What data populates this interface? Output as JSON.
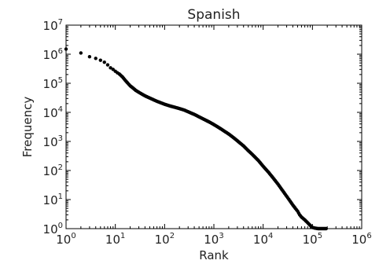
{
  "chart_data": {
    "type": "scatter",
    "title": "Spanish",
    "xlabel": "Rank",
    "ylabel": "Frequency",
    "xscale": "log",
    "yscale": "log",
    "xlim": [
      1,
      1000000
    ],
    "ylim": [
      1,
      10000000
    ],
    "grid": false,
    "x_ticks": [
      {
        "base": "10",
        "exp": "0",
        "value": 1
      },
      {
        "base": "10",
        "exp": "1",
        "value": 10
      },
      {
        "base": "10",
        "exp": "2",
        "value": 100
      },
      {
        "base": "10",
        "exp": "3",
        "value": 1000
      },
      {
        "base": "10",
        "exp": "4",
        "value": 10000
      },
      {
        "base": "10",
        "exp": "5",
        "value": 100000
      },
      {
        "base": "10",
        "exp": "6",
        "value": 1000000
      }
    ],
    "y_ticks": [
      {
        "base": "10",
        "exp": "0",
        "value": 1
      },
      {
        "base": "10",
        "exp": "1",
        "value": 10
      },
      {
        "base": "10",
        "exp": "2",
        "value": 100
      },
      {
        "base": "10",
        "exp": "3",
        "value": 1000
      },
      {
        "base": "10",
        "exp": "4",
        "value": 10000
      },
      {
        "base": "10",
        "exp": "5",
        "value": 100000
      },
      {
        "base": "10",
        "exp": "6",
        "value": 1000000
      },
      {
        "base": "10",
        "exp": "7",
        "value": 10000000
      }
    ],
    "series": [
      {
        "marker_color": "#000000",
        "points": [
          [
            1,
            1500000
          ],
          [
            2,
            1100000
          ],
          [
            3,
            820000
          ],
          [
            4,
            720000
          ],
          [
            5,
            620000
          ],
          [
            6,
            530000
          ],
          [
            7,
            430000
          ],
          [
            8,
            340000
          ],
          [
            9,
            300000
          ],
          [
            10,
            260000
          ],
          [
            11,
            230000
          ],
          [
            12,
            210000
          ],
          [
            14,
            165000
          ],
          [
            16,
            125000
          ],
          [
            18,
            100000
          ],
          [
            20,
            82000
          ],
          [
            23,
            68000
          ],
          [
            26,
            57000
          ],
          [
            30,
            49000
          ],
          [
            35,
            42000
          ],
          [
            40,
            37000
          ],
          [
            50,
            31000
          ],
          [
            60,
            27000
          ],
          [
            70,
            24000
          ],
          [
            80,
            22000
          ],
          [
            100,
            19000
          ],
          [
            130,
            16500
          ],
          [
            160,
            15000
          ],
          [
            200,
            13500
          ],
          [
            250,
            12000
          ],
          [
            300,
            10500
          ],
          [
            400,
            8500
          ],
          [
            500,
            7000
          ],
          [
            600,
            6000
          ],
          [
            800,
            4700
          ],
          [
            1000,
            3800
          ],
          [
            1300,
            2900
          ],
          [
            1600,
            2300
          ],
          [
            2000,
            1800
          ],
          [
            2500,
            1350
          ],
          [
            3000,
            1050
          ],
          [
            4000,
            700
          ],
          [
            5000,
            480
          ],
          [
            6000,
            360
          ],
          [
            8000,
            220
          ],
          [
            10000,
            140
          ],
          [
            13000,
            85
          ],
          [
            16000,
            55
          ],
          [
            20000,
            34
          ],
          [
            25000,
            20
          ],
          [
            30000,
            13
          ],
          [
            35000,
            9
          ],
          [
            40000,
            6.5
          ],
          [
            45000,
            5
          ],
          [
            50000,
            4
          ],
          [
            55000,
            3
          ],
          [
            60000,
            2.5
          ],
          [
            70000,
            2
          ],
          [
            80000,
            1.6
          ],
          [
            90000,
            1.3
          ],
          [
            100000,
            1.1
          ],
          [
            110000,
            1.05
          ],
          [
            130000,
            1
          ],
          [
            160000,
            1
          ],
          [
            190000,
            1
          ]
        ]
      }
    ]
  }
}
